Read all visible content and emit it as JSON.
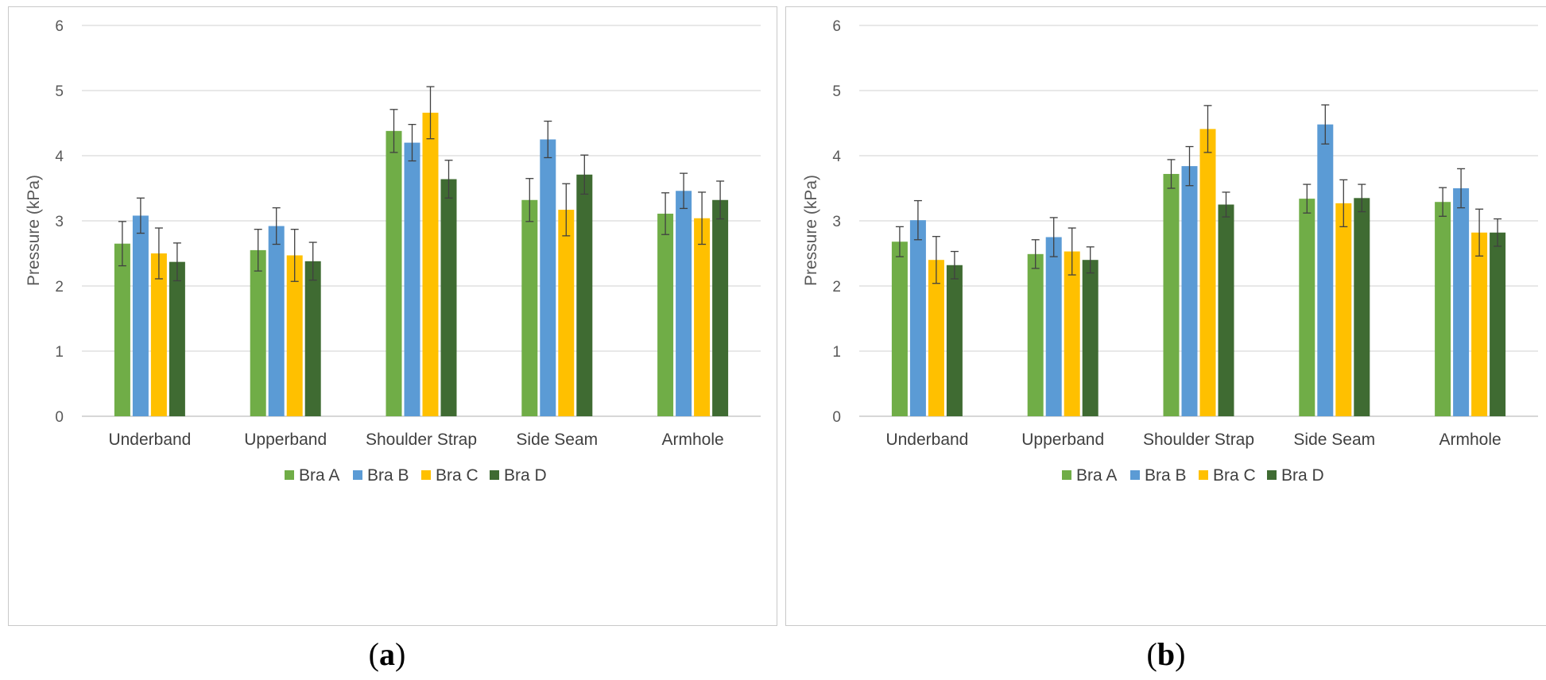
{
  "colors": {
    "Bra A": "#70ad47",
    "Bra B": "#5b9bd5",
    "Bra C": "#ffc000",
    "Bra D": "#3f6b32"
  },
  "captions": {
    "a": "a",
    "b": "b"
  },
  "chart_data": [
    {
      "type": "bar",
      "panel": "a",
      "ylabel": "Pressure (kPa)",
      "xlabel": "",
      "ylim": [
        0,
        6
      ],
      "yticks": [
        0,
        1,
        2,
        3,
        4,
        5,
        6
      ],
      "grid": true,
      "legend_position": "bottom",
      "categories": [
        "Underband",
        "Upperband",
        "Shoulder Strap",
        "Side Seam",
        "Armhole"
      ],
      "series": [
        {
          "name": "Bra A",
          "values": [
            2.65,
            2.55,
            4.38,
            3.32,
            3.11
          ],
          "errors": [
            0.34,
            0.32,
            0.33,
            0.33,
            0.32
          ]
        },
        {
          "name": "Bra B",
          "values": [
            3.08,
            2.92,
            4.2,
            4.25,
            3.46
          ],
          "errors": [
            0.27,
            0.28,
            0.28,
            0.28,
            0.27
          ]
        },
        {
          "name": "Bra C",
          "values": [
            2.5,
            2.47,
            4.66,
            3.17,
            3.04
          ],
          "errors": [
            0.39,
            0.4,
            0.4,
            0.4,
            0.4
          ]
        },
        {
          "name": "Bra D",
          "values": [
            2.37,
            2.38,
            3.64,
            3.71,
            3.32
          ],
          "errors": [
            0.29,
            0.29,
            0.29,
            0.3,
            0.29
          ]
        }
      ]
    },
    {
      "type": "bar",
      "panel": "b",
      "ylabel": "Pressure (kPa)",
      "xlabel": "",
      "ylim": [
        0,
        6
      ],
      "yticks": [
        0,
        1,
        2,
        3,
        4,
        5,
        6
      ],
      "grid": true,
      "legend_position": "bottom",
      "categories": [
        "Underband",
        "Upperband",
        "Shoulder Strap",
        "Side Seam",
        "Armhole"
      ],
      "series": [
        {
          "name": "Bra A",
          "values": [
            2.68,
            2.49,
            3.72,
            3.34,
            3.29
          ],
          "errors": [
            0.23,
            0.22,
            0.22,
            0.22,
            0.22
          ]
        },
        {
          "name": "Bra B",
          "values": [
            3.01,
            2.75,
            3.84,
            4.48,
            3.5
          ],
          "errors": [
            0.3,
            0.3,
            0.3,
            0.3,
            0.3
          ]
        },
        {
          "name": "Bra C",
          "values": [
            2.4,
            2.53,
            4.41,
            3.27,
            2.82
          ],
          "errors": [
            0.36,
            0.36,
            0.36,
            0.36,
            0.36
          ]
        },
        {
          "name": "Bra D",
          "values": [
            2.32,
            2.4,
            3.25,
            3.35,
            2.82
          ],
          "errors": [
            0.21,
            0.2,
            0.19,
            0.21,
            0.21
          ]
        }
      ]
    }
  ]
}
